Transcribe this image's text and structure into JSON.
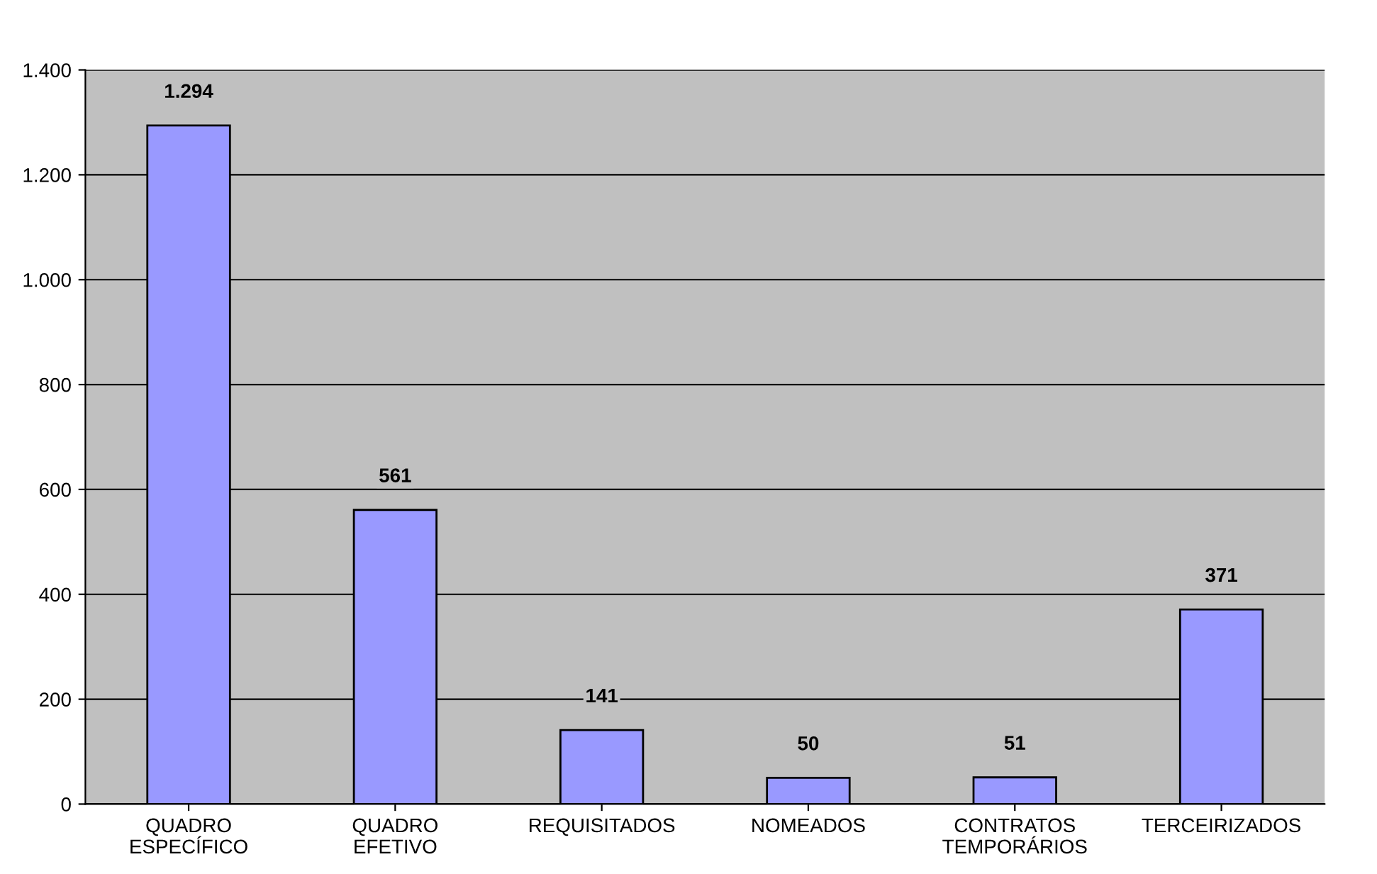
{
  "chart_data": {
    "type": "bar",
    "categories": [
      "QUADRO\nESPECÍFICO",
      "QUADRO\nEFETIVO",
      "REQUISITADOS",
      "NOMEADOS",
      "CONTRATOS\nTEMPORÁRIOS",
      "TERCEIRIZADOS"
    ],
    "values": [
      1294,
      561,
      141,
      50,
      51,
      371
    ],
    "value_labels": [
      "1.294",
      "561",
      "141",
      "50",
      "51",
      "371"
    ],
    "color": "#9999ff",
    "ylim": [
      0,
      1400
    ],
    "yticks": [
      0,
      200,
      400,
      600,
      800,
      {
        "value": 1000,
        "label": "1.000"
      },
      {
        "value": 1200,
        "label": "1.200"
      },
      {
        "value": 1400,
        "label": "1.400"
      }
    ],
    "grid": "y"
  }
}
